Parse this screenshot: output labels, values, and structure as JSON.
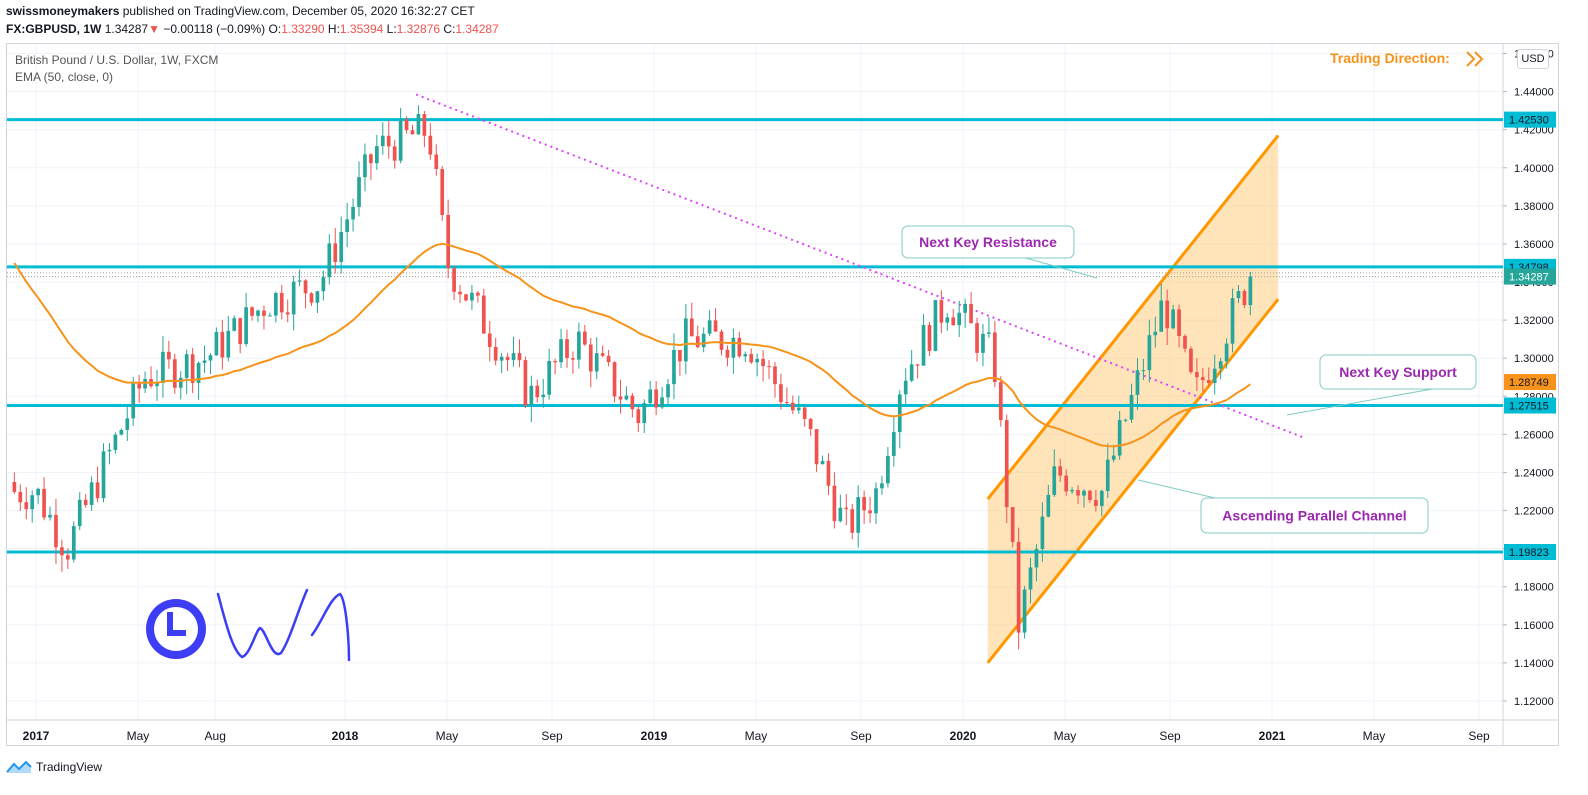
{
  "header": {
    "publisher": "swissmoneymakers",
    "published_text": "published on TradingView.com, December 05, 2020 16:32:27 CET",
    "symbol": "FX:GBPUSD, 1W",
    "last": "1.34287",
    "change": "−0.00118 (−0.09%)",
    "o_label": "O:",
    "o": "1.33290",
    "h_label": "H:",
    "h": "1.35394",
    "l_label": "L:",
    "l": "1.32876",
    "c_label": "C:",
    "c": "1.34287"
  },
  "legend": {
    "title": "British Pound / U.S. Dollar, 1W, FXCM",
    "indicator": "EMA (50, close, 0)"
  },
  "currency_button": "USD",
  "annotations": {
    "trading_direction": "Trading Direction:",
    "resistance": "Next Key Resistance",
    "support": "Next Key Support",
    "channel": "Ascending Parallel Channel"
  },
  "footer": {
    "brand": "TradingView"
  },
  "colors": {
    "up": "#26a69a",
    "down": "#ef5350",
    "level": "#00bcd4",
    "ema": "#f7931a",
    "channel": "#ff9800",
    "trend": "#e040fb",
    "label": "#9c27b0"
  },
  "chart_data": {
    "type": "candlestick",
    "title": "British Pound / U.S. Dollar, 1W, FXCM",
    "y_axis": {
      "range": [
        1.11,
        1.465
      ],
      "ticks": [
        "1.46000",
        "1.44000",
        "1.42000",
        "1.40000",
        "1.38000",
        "1.36000",
        "1.34000",
        "1.32000",
        "1.30000",
        "1.28000",
        "1.26000",
        "1.24000",
        "1.22000",
        "1.20000",
        "1.18000",
        "1.16000",
        "1.14000",
        "1.12000"
      ]
    },
    "x_axis": {
      "labels": [
        {
          "t": "2017",
          "year": 2017.0,
          "bold": true
        },
        {
          "t": "May",
          "year": 2017.33
        },
        {
          "t": "Aug",
          "year": 2017.58
        },
        {
          "t": "2018",
          "year": 2018.0,
          "bold": true
        },
        {
          "t": "May",
          "year": 2018.33
        },
        {
          "t": "Sep",
          "year": 2018.67
        },
        {
          "t": "2019",
          "year": 2019.0,
          "bold": true
        },
        {
          "t": "May",
          "year": 2019.33
        },
        {
          "t": "Sep",
          "year": 2019.67
        },
        {
          "t": "2020",
          "year": 2020.0,
          "bold": true
        },
        {
          "t": "May",
          "year": 2020.33
        },
        {
          "t": "Sep",
          "year": 2020.67
        },
        {
          "t": "2021",
          "year": 2021.0,
          "bold": true
        },
        {
          "t": "May",
          "year": 2021.33
        },
        {
          "t": "Sep",
          "year": 2021.67
        }
      ]
    },
    "horizontal_levels": [
      {
        "value": 1.4253,
        "label": "1.42530"
      },
      {
        "value": 1.34798,
        "label": "1.34798"
      },
      {
        "value": 1.27515,
        "label": "1.27515"
      },
      {
        "value": 1.19823,
        "label": "1.19823"
      }
    ],
    "price_tags": [
      {
        "value": 1.34287,
        "label": "1.34287",
        "kind": "last"
      },
      {
        "value": 1.28749,
        "label": "1.28749",
        "kind": "ema"
      }
    ],
    "series": [
      {
        "name": "GBPUSD",
        "type": "candlestick",
        "key_points": [
          {
            "year": 2017.0,
            "price": 1.23
          },
          {
            "year": 2017.1,
            "price": 1.2
          },
          {
            "year": 2017.35,
            "price": 1.29
          },
          {
            "year": 2017.55,
            "price": 1.3
          },
          {
            "year": 2017.75,
            "price": 1.33
          },
          {
            "year": 2017.92,
            "price": 1.34
          },
          {
            "year": 2018.1,
            "price": 1.41
          },
          {
            "year": 2018.27,
            "price": 1.42
          },
          {
            "year": 2018.33,
            "price": 1.35
          },
          {
            "year": 2018.6,
            "price": 1.28
          },
          {
            "year": 2018.75,
            "price": 1.31
          },
          {
            "year": 2018.95,
            "price": 1.27
          },
          {
            "year": 2019.1,
            "price": 1.31
          },
          {
            "year": 2019.3,
            "price": 1.31
          },
          {
            "year": 2019.5,
            "price": 1.26
          },
          {
            "year": 2019.62,
            "price": 1.21
          },
          {
            "year": 2019.72,
            "price": 1.23
          },
          {
            "year": 2019.8,
            "price": 1.29
          },
          {
            "year": 2019.95,
            "price": 1.33
          },
          {
            "year": 2020.1,
            "price": 1.3
          },
          {
            "year": 2020.18,
            "price": 1.16
          },
          {
            "year": 2020.3,
            "price": 1.24
          },
          {
            "year": 2020.45,
            "price": 1.23
          },
          {
            "year": 2020.65,
            "price": 1.33
          },
          {
            "year": 2020.75,
            "price": 1.28
          },
          {
            "year": 2020.93,
            "price": 1.3429
          }
        ]
      },
      {
        "name": "EMA (50, close, 0)",
        "type": "line"
      }
    ]
  }
}
